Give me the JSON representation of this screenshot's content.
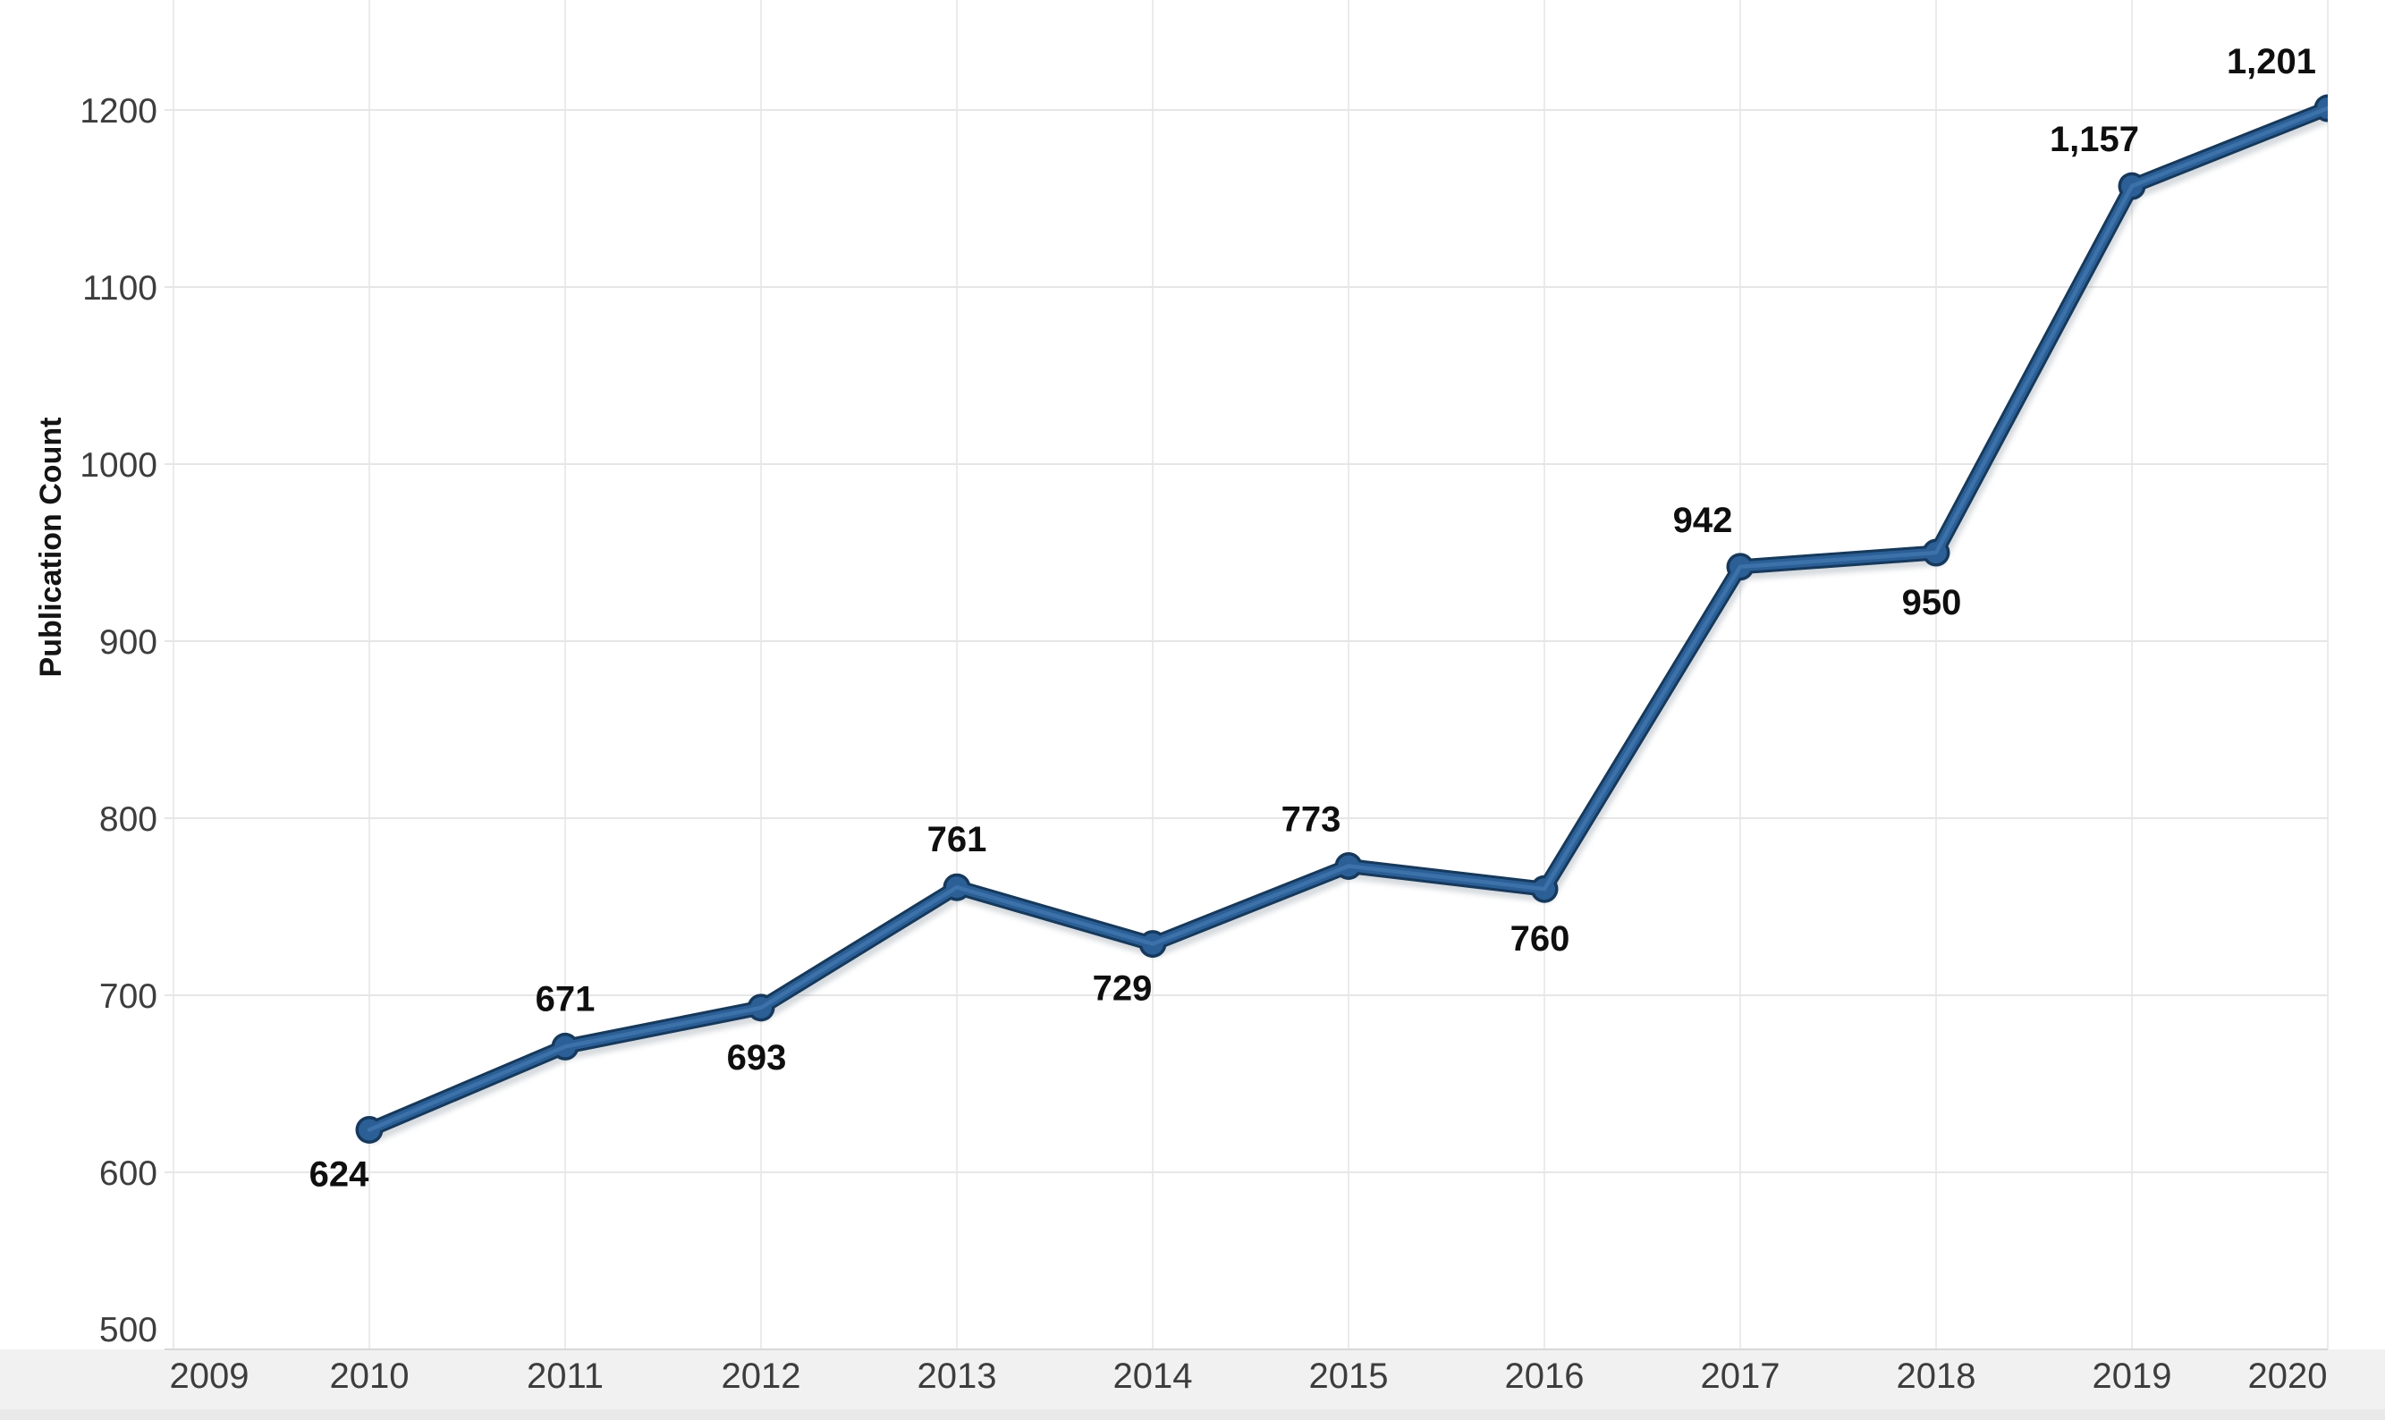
{
  "chart_data": {
    "type": "line",
    "title": "",
    "xlabel": "",
    "ylabel": "Publication Count",
    "x_ticks": [
      "2009",
      "2010",
      "2011",
      "2012",
      "2013",
      "2014",
      "2015",
      "2016",
      "2017",
      "2018",
      "2019",
      "2020"
    ],
    "y_ticks": [
      500,
      600,
      700,
      800,
      900,
      1000,
      1100,
      1200
    ],
    "xlim": [
      2009,
      2020
    ],
    "ylim": [
      500,
      1200
    ],
    "grid": "both",
    "legend": "none",
    "series": [
      {
        "name": "Publication Count",
        "points": [
          {
            "x": 2010,
            "y": 624,
            "label": "624",
            "label_pos": "below-left"
          },
          {
            "x": 2011,
            "y": 671,
            "label": "671",
            "label_pos": "above"
          },
          {
            "x": 2012,
            "y": 693,
            "label": "693",
            "label_pos": "below"
          },
          {
            "x": 2013,
            "y": 761,
            "label": "761",
            "label_pos": "above"
          },
          {
            "x": 2014,
            "y": 729,
            "label": "729",
            "label_pos": "below-left"
          },
          {
            "x": 2015,
            "y": 773,
            "label": "773",
            "label_pos": "above-left"
          },
          {
            "x": 2016,
            "y": 760,
            "label": "760",
            "label_pos": "below"
          },
          {
            "x": 2017,
            "y": 942,
            "label": "942",
            "label_pos": "above-left"
          },
          {
            "x": 2018,
            "y": 950,
            "label": "950",
            "label_pos": "below"
          },
          {
            "x": 2019,
            "y": 1157,
            "label": "1,157",
            "label_pos": "above-left"
          },
          {
            "x": 2020,
            "y": 1201,
            "label": "1,201",
            "label_pos": "above-left"
          }
        ]
      }
    ],
    "colors": {
      "background": "#ffffff",
      "line": "#2b5f96",
      "line_edge": "#16395c",
      "line_highlight": "#3f76ad",
      "line_shadow": "#8b95a0",
      "grid_horizontal": "#e6e6e6",
      "grid_vertical": "#ebebeb",
      "axis_line": "#d8d8d8",
      "tick_text": "#3d3d3d",
      "data_label": "#0f0f0f",
      "axis_title": "#141414",
      "footer_band": "#f1f1f1",
      "footer_edge": "#e9e9e9"
    }
  }
}
